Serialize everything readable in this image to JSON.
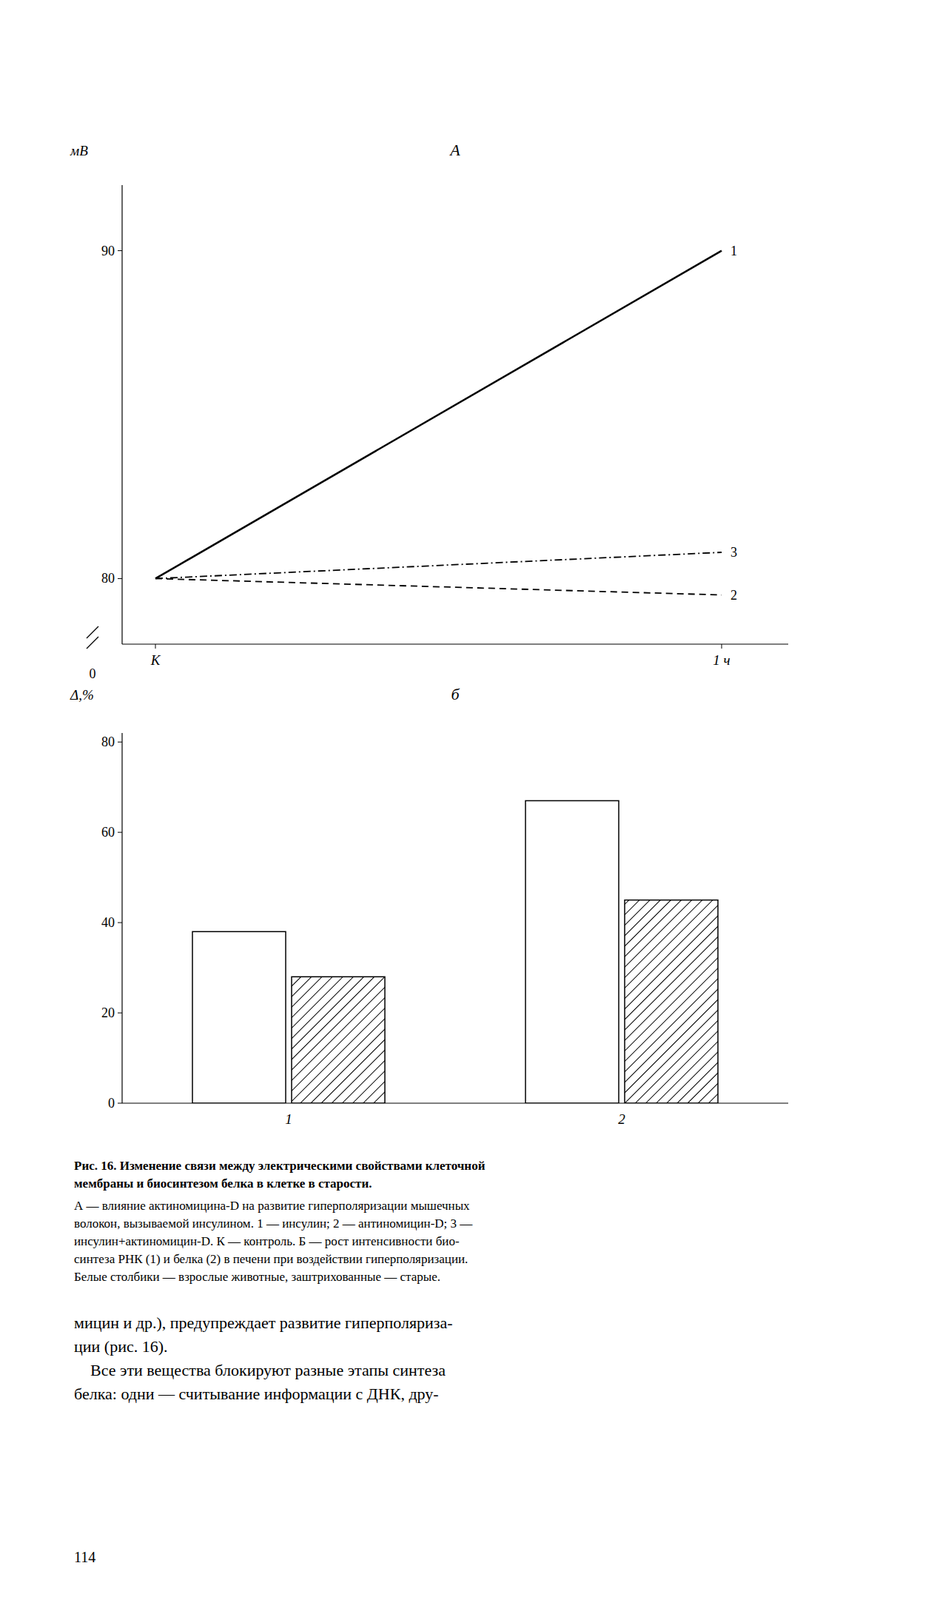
{
  "chart_data": [
    {
      "type": "line",
      "title": "А",
      "y_label": "мВ",
      "categories": [
        "К",
        "1 ч"
      ],
      "ylim": [
        78,
        92
      ],
      "yticks": [
        80,
        90
      ],
      "annotations": [
        "0"
      ],
      "series": [
        {
          "name": "1",
          "color": "black",
          "line_style": "solid",
          "values": [
            80,
            90
          ]
        },
        {
          "name": "2",
          "color": "black",
          "line_style": "dashed",
          "values": [
            80,
            79.5
          ]
        },
        {
          "name": "3",
          "color": "black",
          "line_style": "dashdot",
          "values": [
            80,
            80.8
          ]
        }
      ]
    },
    {
      "type": "bar",
      "title": "б",
      "y_label": "Δ,%",
      "categories": [
        "1",
        "2"
      ],
      "ylim": [
        0,
        82
      ],
      "yticks": [
        0,
        20,
        40,
        60,
        80
      ],
      "series": [
        {
          "color": "white",
          "values": [
            38,
            67
          ]
        },
        {
          "color": "white",
          "values": [
            28,
            45
          ]
        }
      ]
    }
  ],
  "caption_title": [
    "Рис. 16. Изменение связи между электрическими свойствами клеточной",
    "мембраны и биосинтезом белка в клетке в старости."
  ],
  "caption": [
    "А — влияние актиномицина-D на развитие гиперполяризации мышечных",
    "волокон, вызываемой инсулином. 1 — инсулин; 2 — антиномицин-D; 3 —",
    "инсулин+актиномицин-D. К — контроль. Б — рост интенсивности био-",
    "синтеза РНК (1) и белка (2) в печени при воздействии гиперполяризации.",
    "Белые столбики — взрослые животные, заштрихованные — старые."
  ],
  "body_text": [
    [
      "мицин и др.), предупреждает развитие гиперполяриза-",
      "ции (рис. 16)."
    ],
    [
      "    Все эти вещества блокируют разные этапы синтеза",
      "белка: одни — считывание информации с ДНК, дру-"
    ]
  ],
  "page_number": "114"
}
